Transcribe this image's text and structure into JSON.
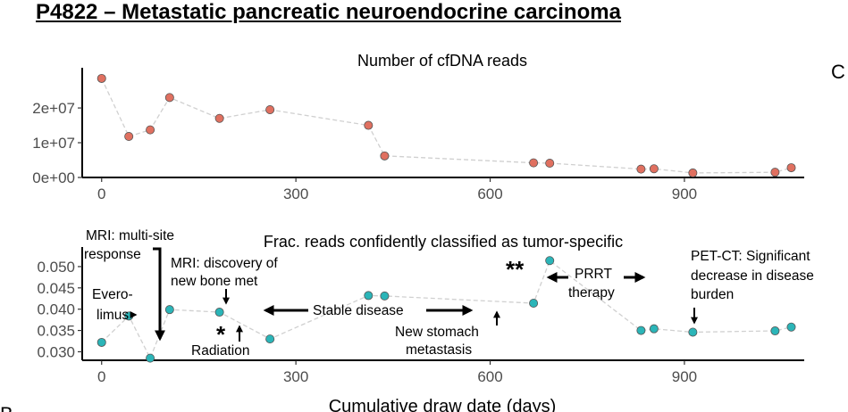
{
  "title": "P4822 – Metastatic pancreatic neuroendocrine carcinoma",
  "edge_letters": {
    "right_top": "C",
    "bottom_left": "B"
  },
  "chart_data": [
    {
      "type": "scatter",
      "title": "Number of cfDNA reads",
      "xlabel": "",
      "ylabel": "",
      "xlim": [
        -30,
        1085
      ],
      "ylim": [
        0,
        29000000
      ],
      "x_ticks": [
        0,
        300,
        600,
        900
      ],
      "y_ticks": [
        0,
        10000000,
        20000000
      ],
      "y_tick_labels": [
        "0e+00",
        "1e+07",
        "2e+07"
      ],
      "point_color": "#e07060",
      "connector": "dashed-grey",
      "series": [
        {
          "x": [
            0,
            42,
            75,
            105,
            182,
            260,
            412,
            437,
            667,
            692,
            833,
            853,
            913,
            1040,
            1065
          ],
          "y": [
            28500000,
            11800000,
            13700000,
            23000000,
            17000000,
            19500000,
            15000000,
            6200000,
            4200000,
            4100000,
            2400000,
            2500000,
            1300000,
            1500000,
            2800000
          ]
        }
      ]
    },
    {
      "type": "scatter",
      "title": "Frac. reads confidently classified as tumor-specific",
      "xlabel": "Cumulative draw date (days)",
      "ylabel": "",
      "xlim": [
        -30,
        1085
      ],
      "ylim": [
        0.028,
        0.0525
      ],
      "x_ticks": [
        0,
        300,
        600,
        900
      ],
      "y_ticks": [
        0.03,
        0.035,
        0.04,
        0.045,
        0.05
      ],
      "y_tick_labels": [
        "0.030",
        "0.035",
        "0.040",
        "0.045",
        "0.050"
      ],
      "point_color": "#2bb5b8",
      "connector": "dashed-grey",
      "series": [
        {
          "x": [
            0,
            42,
            75,
            105,
            182,
            260,
            412,
            437,
            667,
            692,
            833,
            853,
            913,
            1040,
            1065
          ],
          "y": [
            0.0322,
            0.0384,
            0.0285,
            0.0399,
            0.0393,
            0.033,
            0.0432,
            0.0431,
            0.0414,
            0.0514,
            0.035,
            0.0354,
            0.0346,
            0.0349,
            0.0358
          ]
        }
      ],
      "annotations": [
        {
          "text": "MRI: multi-site",
          "arrow": "down"
        },
        {
          "text": "response"
        },
        {
          "text": "Evero-"
        },
        {
          "text": "limus",
          "arrow": "right"
        },
        {
          "text": "MRI: discovery of"
        },
        {
          "text": "new bone met",
          "arrow": "down"
        },
        {
          "text": "*"
        },
        {
          "text": "Radiation",
          "arrow": "up"
        },
        {
          "text": "Stable disease",
          "arrow": "both-horizontal"
        },
        {
          "text": "New stomach"
        },
        {
          "text": "metastasis",
          "arrow": "up"
        },
        {
          "text": "**"
        },
        {
          "text": "PRRT",
          "arrow": "both-horizontal"
        },
        {
          "text": "therapy"
        },
        {
          "text": "PET-CT: Significant"
        },
        {
          "text": "decrease in disease"
        },
        {
          "text": "burden",
          "arrow": "down"
        }
      ]
    }
  ]
}
